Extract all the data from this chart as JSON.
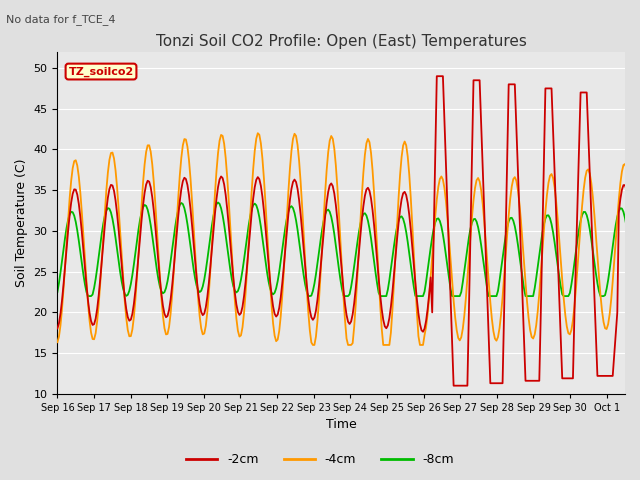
{
  "title": "Tonzi Soil CO2 Profile: Open (East) Temperatures",
  "subtitle": "No data for f_TCE_4",
  "xlabel": "Time",
  "ylabel": "Soil Temperature (C)",
  "ylim": [
    10,
    52
  ],
  "yticks": [
    10,
    15,
    20,
    25,
    30,
    35,
    40,
    45,
    50
  ],
  "legend_label": "TZ_soilco2",
  "series_labels": [
    "-2cm",
    "-4cm",
    "-8cm"
  ],
  "series_colors": [
    "#cc0000",
    "#ff9900",
    "#00bb00"
  ],
  "background_color": "#e0e0e0",
  "plot_bg_color": "#e8e8e8",
  "grid_color": "#ffffff",
  "xtick_labels": [
    "Sep 16",
    "Sep 17",
    "Sep 18",
    "Sep 19",
    "Sep 20",
    "Sep 21",
    "Sep 22",
    "Sep 23",
    "Sep 24",
    "Sep 25",
    "Sep 26",
    "Sep 27",
    "Sep 28",
    "Sep 29",
    "Sep 30",
    "Oct 1"
  ]
}
